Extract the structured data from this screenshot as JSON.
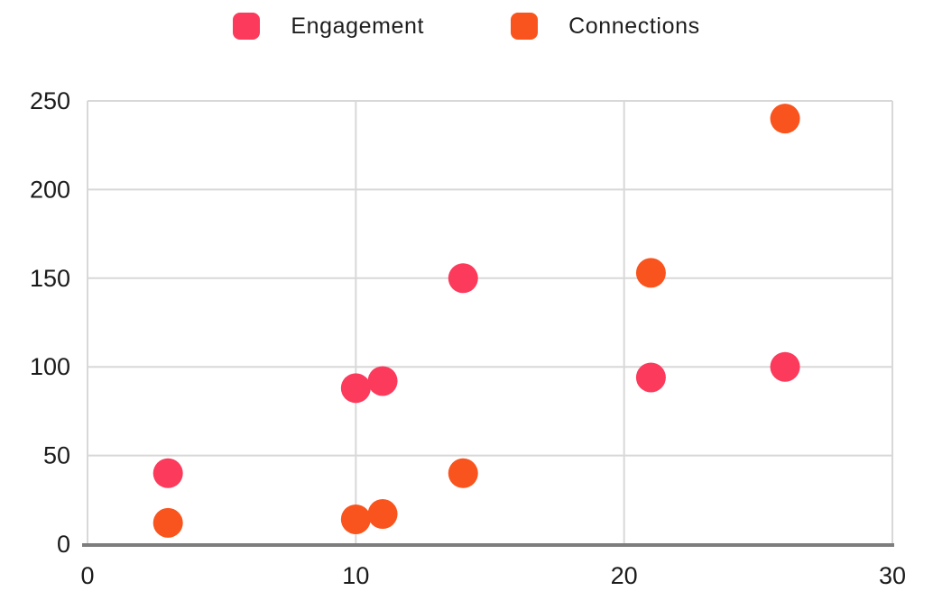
{
  "chart_data": {
    "type": "scatter",
    "title": "",
    "xlabel": "",
    "ylabel": "",
    "xlim": [
      0,
      30
    ],
    "ylim": [
      0,
      250
    ],
    "xticks": [
      0,
      10,
      20,
      30
    ],
    "yticks": [
      0,
      50,
      100,
      150,
      200,
      250
    ],
    "grid": true,
    "legend_position": "top",
    "point_radius": 16.5,
    "series": [
      {
        "name": "Engagement",
        "color": "#FB3A5C",
        "points": [
          [
            3,
            40
          ],
          [
            10,
            88
          ],
          [
            11,
            92
          ],
          [
            14,
            150
          ],
          [
            21,
            94
          ],
          [
            26,
            100
          ]
        ]
      },
      {
        "name": "Connections",
        "color": "#F9541D",
        "points": [
          [
            3,
            12
          ],
          [
            10,
            14
          ],
          [
            11,
            17
          ],
          [
            14,
            40
          ],
          [
            21,
            153
          ],
          [
            26,
            240
          ]
        ]
      }
    ],
    "colors": {
      "grid": "#d8d8d8",
      "axis": "#7d7d7d",
      "tick_text": "#1b1b1b",
      "background": "#ffffff"
    }
  }
}
